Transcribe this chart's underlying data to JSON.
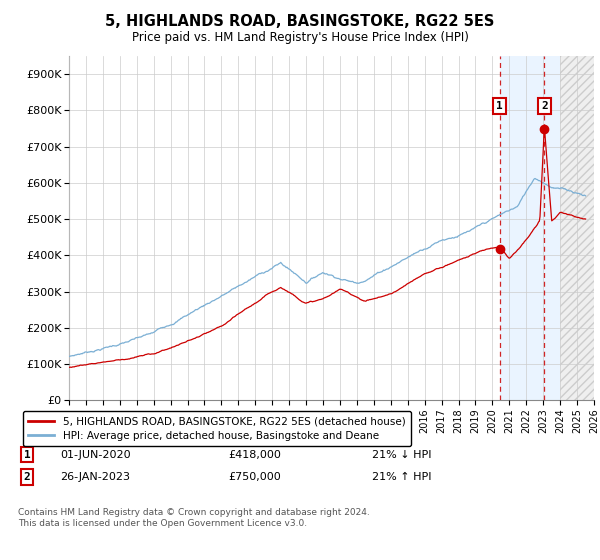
{
  "title": "5, HIGHLANDS ROAD, BASINGSTOKE, RG22 5ES",
  "subtitle": "Price paid vs. HM Land Registry's House Price Index (HPI)",
  "legend_line1": "5, HIGHLANDS ROAD, BASINGSTOKE, RG22 5ES (detached house)",
  "legend_line2": "HPI: Average price, detached house, Basingstoke and Deane",
  "annotation1_date": "01-JUN-2020",
  "annotation1_price": "£418,000",
  "annotation1_hpi": "21% ↓ HPI",
  "annotation2_date": "26-JAN-2023",
  "annotation2_price": "£750,000",
  "annotation2_hpi": "21% ↑ HPI",
  "footer": "Contains HM Land Registry data © Crown copyright and database right 2024.\nThis data is licensed under the Open Government Licence v3.0.",
  "ylim": [
    0,
    950000
  ],
  "yticks": [
    0,
    100000,
    200000,
    300000,
    400000,
    500000,
    600000,
    700000,
    800000,
    900000
  ],
  "hpi_color": "#7bafd4",
  "price_color": "#cc0000",
  "grid_color": "#cccccc",
  "sale1_x": 2020.42,
  "sale1_y": 418000,
  "sale2_x": 2023.07,
  "sale2_y": 750000,
  "xmin": 1995,
  "xmax": 2026,
  "hatch_start": 2024.0
}
